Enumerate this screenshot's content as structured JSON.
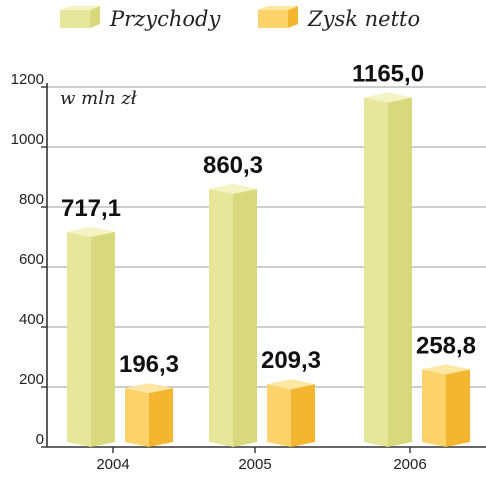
{
  "chart_data": {
    "type": "bar",
    "unit_label": "w mln zł",
    "categories": [
      "2004",
      "2005",
      "2006"
    ],
    "series": [
      {
        "name": "Przychody",
        "values": [
          717.1,
          860.3,
          1165.0
        ],
        "labels": [
          "717,1",
          "860,3",
          "1165,0"
        ]
      },
      {
        "name": "Zysk netto",
        "values": [
          196.3,
          209.3,
          258.8
        ],
        "labels": [
          "196,3",
          "209,3",
          "258,8"
        ]
      }
    ],
    "y_ticks": [
      0,
      200,
      400,
      600,
      800,
      1000,
      1200
    ],
    "ylim": [
      0,
      1200
    ],
    "grid": true,
    "legend_position": "top",
    "colors": {
      "przychody": {
        "front": "#e6e79a",
        "side": "#d8d97c",
        "top": "#f3f3c4"
      },
      "zysk": {
        "front": "#fcd36a",
        "side": "#f4b530",
        "top": "#fde7a3"
      },
      "grid": "#b0b0b0",
      "axis": "#333333"
    }
  }
}
